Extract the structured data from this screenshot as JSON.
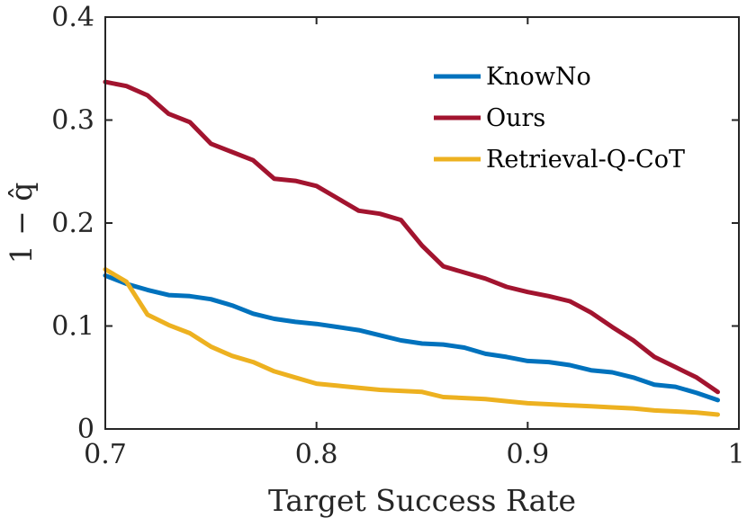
{
  "chart_data": {
    "type": "line",
    "xlabel": "Target Success Rate",
    "ylabel": "1 − q̂",
    "xlim": [
      0.7,
      1.0
    ],
    "ylim": [
      0,
      0.4
    ],
    "xticks": [
      0.7,
      0.8,
      0.9,
      1.0
    ],
    "xtick_labels": [
      "0.7",
      "0.8",
      "0.9",
      "1"
    ],
    "yticks": [
      0,
      0.1,
      0.2,
      0.3,
      0.4
    ],
    "ytick_labels": [
      "0",
      "0.1",
      "0.2",
      "0.3",
      "0.4"
    ],
    "grid": false,
    "legend_position": "top-right",
    "x": [
      0.7,
      0.71,
      0.72,
      0.73,
      0.74,
      0.75,
      0.76,
      0.77,
      0.78,
      0.79,
      0.8,
      0.81,
      0.82,
      0.83,
      0.84,
      0.85,
      0.86,
      0.87,
      0.88,
      0.89,
      0.9,
      0.91,
      0.92,
      0.93,
      0.94,
      0.95,
      0.96,
      0.97,
      0.98,
      0.99
    ],
    "series": [
      {
        "name": "KnowNo",
        "color": "#0072BD",
        "values": [
          0.149,
          0.141,
          0.135,
          0.13,
          0.129,
          0.126,
          0.12,
          0.112,
          0.107,
          0.104,
          0.102,
          0.099,
          0.096,
          0.091,
          0.086,
          0.083,
          0.082,
          0.079,
          0.073,
          0.07,
          0.066,
          0.065,
          0.062,
          0.057,
          0.055,
          0.05,
          0.043,
          0.041,
          0.035,
          0.028
        ]
      },
      {
        "name": "Ours",
        "color": "#A2142F",
        "values": [
          0.337,
          0.333,
          0.324,
          0.306,
          0.298,
          0.277,
          0.269,
          0.261,
          0.243,
          0.241,
          0.236,
          0.224,
          0.212,
          0.209,
          0.203,
          0.178,
          0.158,
          0.152,
          0.146,
          0.138,
          0.133,
          0.129,
          0.124,
          0.113,
          0.099,
          0.086,
          0.07,
          0.06,
          0.05,
          0.036
        ]
      },
      {
        "name": "Retrieval-Q-CoT",
        "color": "#EDB120",
        "values": [
          0.155,
          0.143,
          0.111,
          0.101,
          0.093,
          0.08,
          0.071,
          0.065,
          0.056,
          0.05,
          0.044,
          0.042,
          0.04,
          0.038,
          0.037,
          0.036,
          0.031,
          0.03,
          0.029,
          0.027,
          0.025,
          0.024,
          0.023,
          0.022,
          0.021,
          0.02,
          0.018,
          0.017,
          0.016,
          0.014
        ]
      }
    ]
  }
}
